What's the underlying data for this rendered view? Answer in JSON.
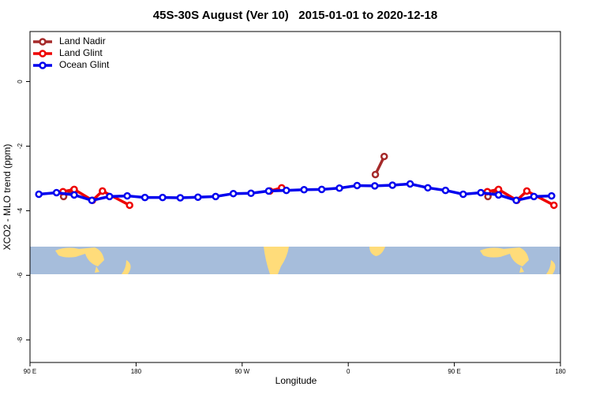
{
  "chart_data": {
    "type": "line",
    "title": "45S-30S August (Ver 10)   2015-01-01 to 2020-12-18",
    "x_label": "Longitude",
    "y_label": "XCO2 - MLO trend (ppm)",
    "xlim": [
      90,
      540
    ],
    "ylim": [
      -8.7,
      1.55
    ],
    "xticks": [
      {
        "value": 90,
        "label": "90 E"
      },
      {
        "value": 180,
        "label": "180"
      },
      {
        "value": 270,
        "label": "90 W"
      },
      {
        "value": 360,
        "label": "0"
      },
      {
        "value": 450,
        "label": "90 E"
      },
      {
        "value": 540,
        "label": "180"
      }
    ],
    "yticks": [
      0,
      -2,
      -4,
      -6,
      -8
    ],
    "legend": "top-left",
    "series": [
      {
        "name": "Land Nadir",
        "color": "#a52a2a",
        "x": [
          118.5,
          127,
          250,
          383,
          390.5,
          420,
          478.5,
          487
        ],
        "values": [
          -3.56,
          -3.36,
          null,
          -2.88,
          -2.32,
          null,
          -3.56,
          -3.36
        ]
      },
      {
        "name": "Land Glint",
        "color": "#ee0000",
        "x": [
          118,
          127.5,
          143,
          151.5,
          174.5,
          230,
          293.5,
          303.5,
          420,
          478,
          487.5,
          503,
          511.5,
          534.5
        ],
        "values": [
          -3.41,
          -3.34,
          -3.68,
          -3.39,
          -3.83,
          null,
          -3.39,
          -3.29,
          null,
          -3.41,
          -3.34,
          -3.68,
          -3.39,
          -3.83
        ]
      },
      {
        "name": "Ocean Glint",
        "color": "#0000ee",
        "x": [
          97.5,
          112.5,
          127.5,
          142.5,
          157.5,
          172.5,
          187.5,
          202.5,
          217.5,
          232.5,
          247.5,
          262.5,
          277.5,
          292.5,
          307.5,
          322.5,
          337.5,
          352.5,
          367.5,
          382.5,
          397.5,
          412.5,
          427.5,
          442.5,
          457.5,
          472.5,
          487.5,
          502.5,
          517.5,
          532.5
        ],
        "values": [
          -3.49,
          -3.44,
          -3.51,
          -3.68,
          -3.56,
          -3.54,
          -3.59,
          -3.59,
          -3.6,
          -3.58,
          -3.56,
          -3.47,
          -3.46,
          -3.39,
          -3.37,
          -3.35,
          -3.34,
          -3.3,
          -3.22,
          -3.23,
          -3.21,
          -3.17,
          -3.29,
          -3.37,
          -3.49,
          -3.44,
          -3.51,
          -3.68,
          -3.56,
          -3.54
        ]
      }
    ]
  }
}
